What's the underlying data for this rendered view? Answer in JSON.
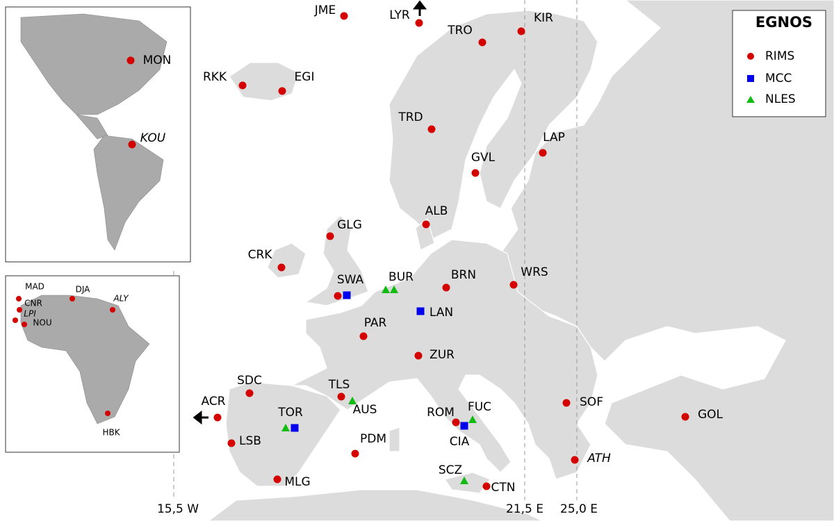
{
  "legend": {
    "title": "EGNOS",
    "items": [
      "RIMS",
      "MCC",
      "NLES"
    ]
  },
  "map_labels": [
    "JME",
    "LYR",
    "TRO",
    "KIR",
    "RKK",
    "EGI",
    "TRD",
    "LAP",
    "GVL",
    "ALB",
    "GLG",
    "CRK",
    "SWA",
    "BUR",
    "BRN",
    "WRS",
    "LAN",
    "PAR",
    "ZUR",
    "SDC",
    "TLS",
    "AUS",
    "ACR",
    "TOR",
    "FUC",
    "ROM",
    "SOF",
    "GOL",
    "CIA",
    "LSB",
    "PDM",
    "ATH",
    "SCZ",
    "MLG",
    "CTN"
  ],
  "americas_labels": [
    "MON",
    "KOU"
  ],
  "africa_labels": [
    "MAD",
    "DJA",
    "ALY",
    "CNR",
    "LPI",
    "NOU",
    "HBK"
  ],
  "meridians": [
    "15,5 W",
    "21,5 E",
    "25,0 E"
  ]
}
